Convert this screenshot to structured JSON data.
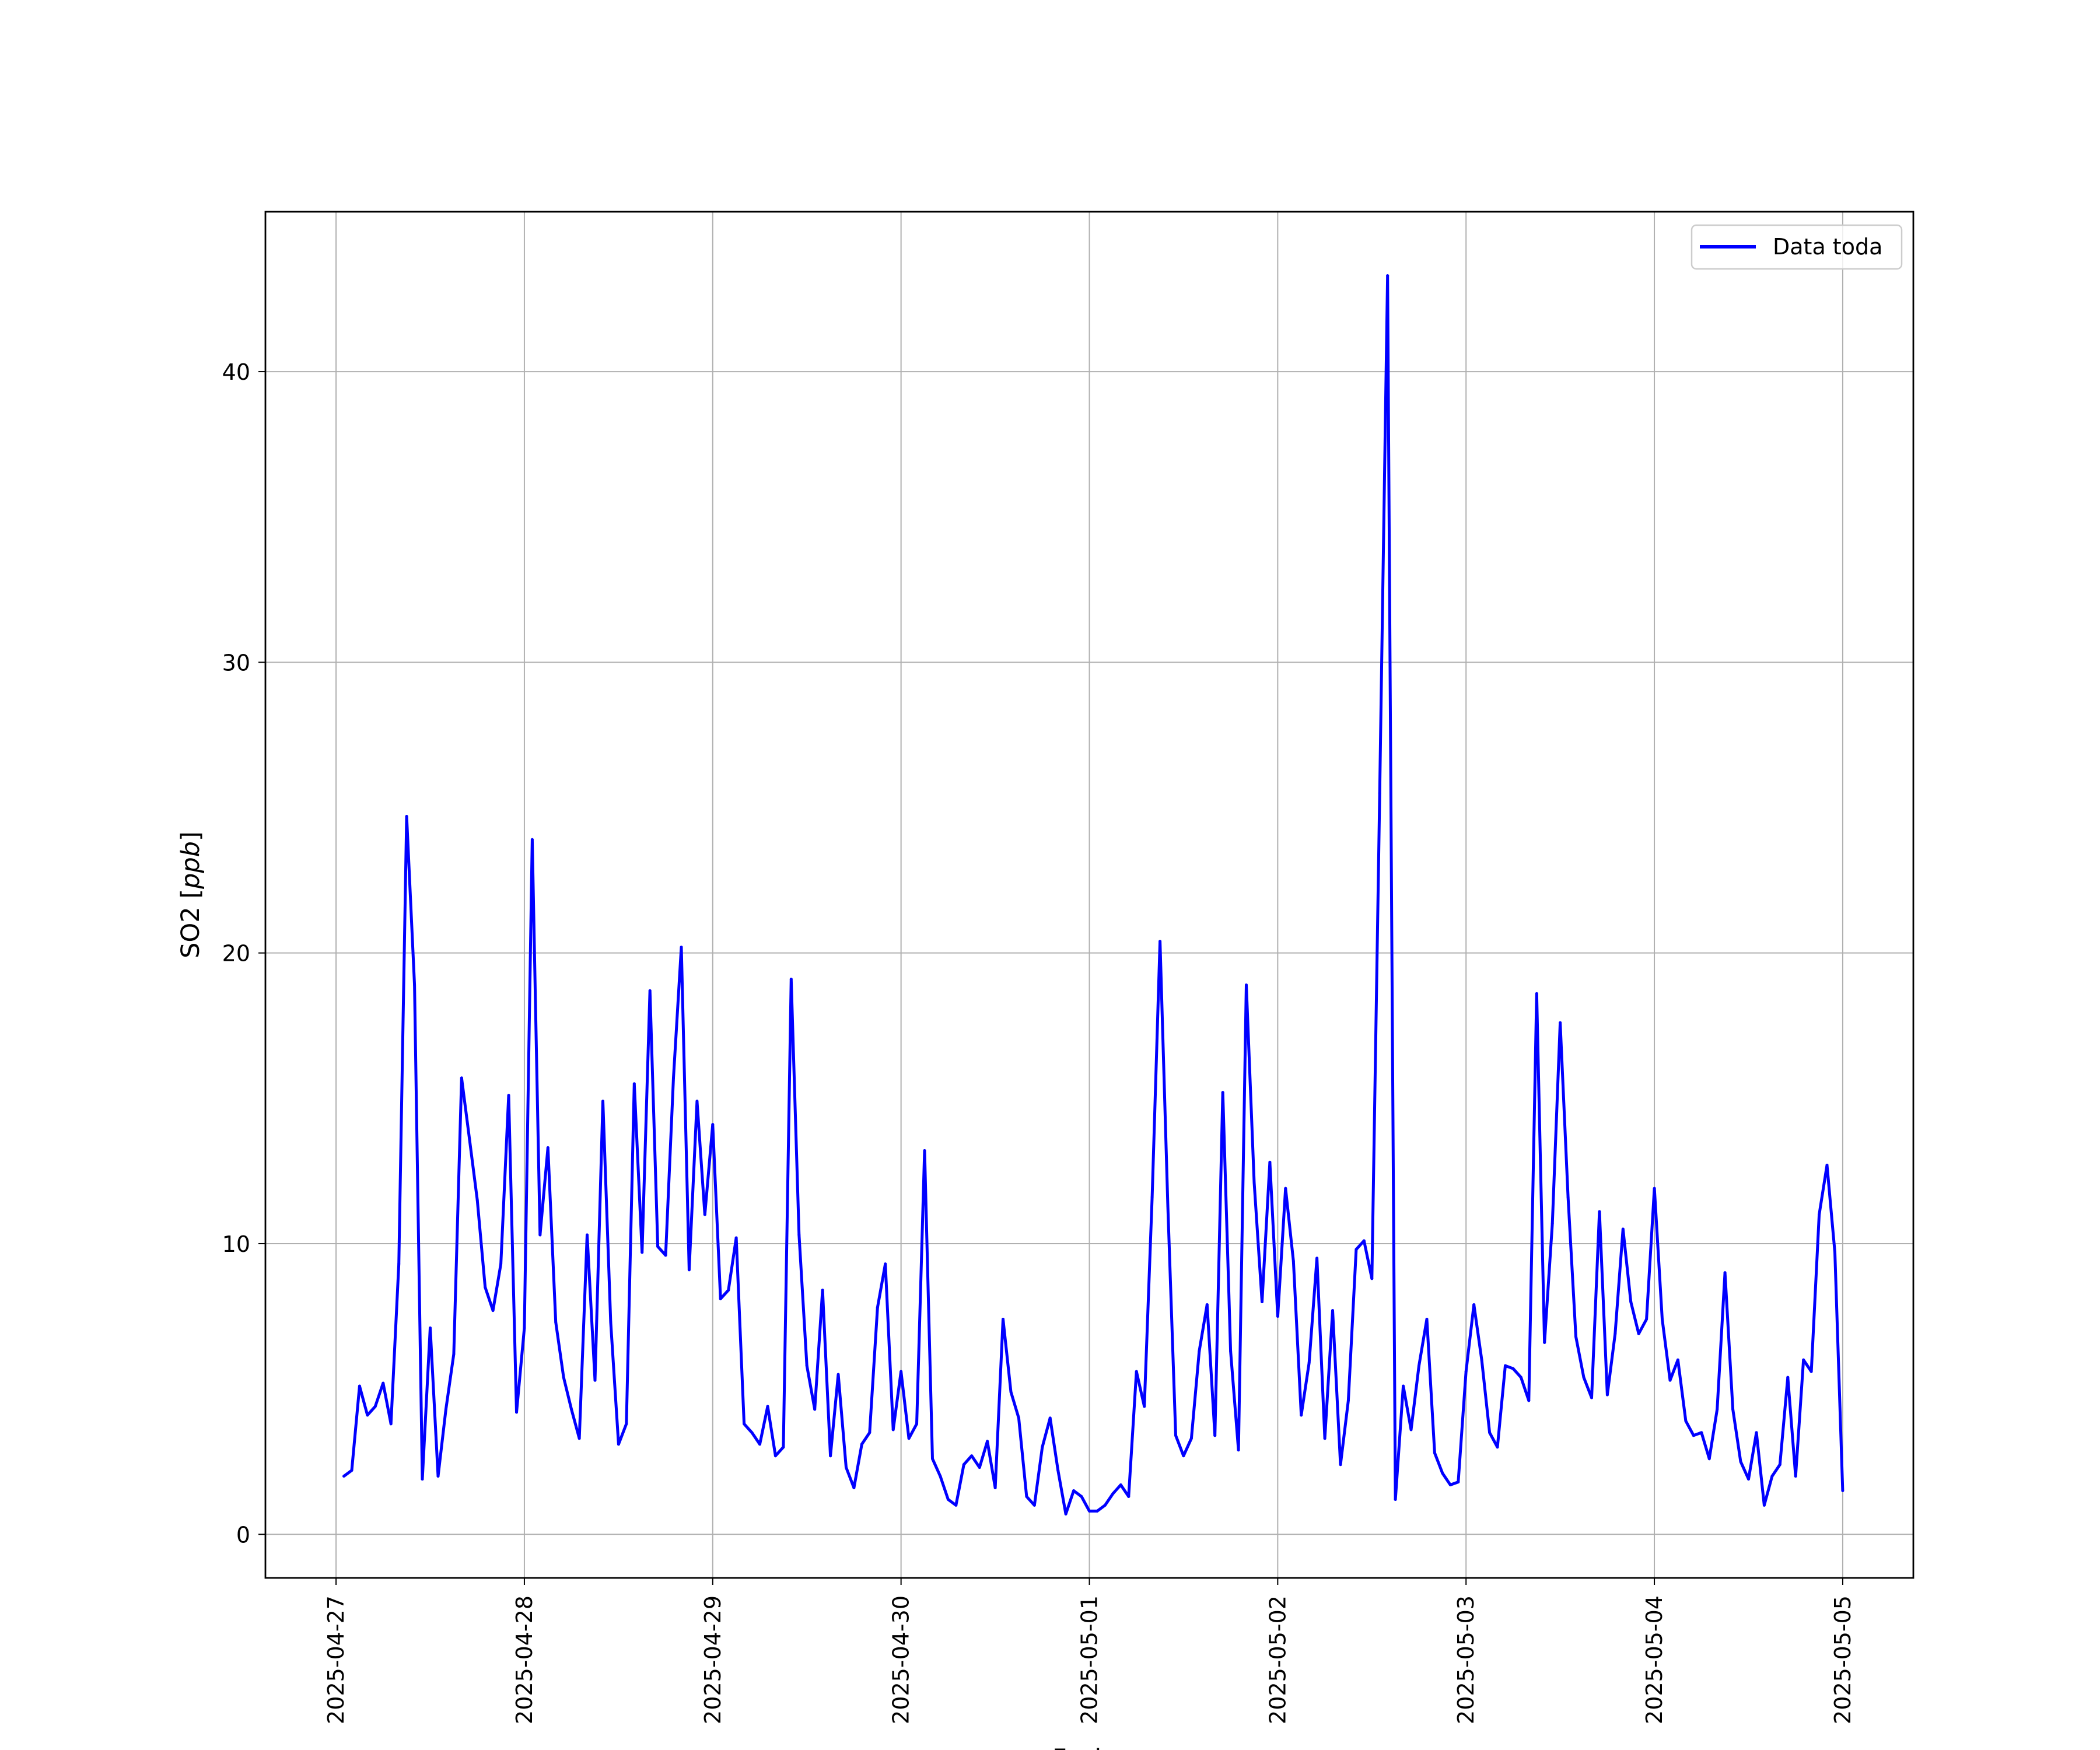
{
  "chart_data": {
    "type": "line",
    "title": "",
    "xlabel": "Fecha",
    "ylabel": {
      "prefix": "SO2 [",
      "unit": "ppb",
      "suffix": "]"
    },
    "xlim": [
      "2025-04-26 15:00",
      "2025-05-05 09:00"
    ],
    "ylim": [
      -1.5,
      45.5
    ],
    "x_ticks": [
      "2025-04-27",
      "2025-04-28",
      "2025-04-29",
      "2025-04-30",
      "2025-05-01",
      "2025-05-02",
      "2025-05-03",
      "2025-05-04",
      "2025-05-05"
    ],
    "y_ticks": [
      0,
      10,
      20,
      30,
      40
    ],
    "grid": true,
    "legend": {
      "position": "top-right",
      "entries": [
        "Data toda"
      ]
    },
    "series": [
      {
        "name": "Data toda",
        "color": "#0000ff",
        "start": "2025-04-27 01:00",
        "interval_hours": 1,
        "values": [
          2.0,
          2.2,
          5.1,
          4.1,
          4.4,
          5.2,
          3.8,
          9.3,
          24.7,
          18.9,
          1.9,
          7.1,
          2.0,
          4.3,
          6.2,
          15.7,
          13.6,
          11.5,
          8.5,
          7.7,
          9.3,
          15.1,
          4.2,
          7.1,
          23.9,
          10.3,
          13.3,
          7.3,
          5.4,
          4.3,
          3.3,
          10.3,
          5.3,
          14.9,
          7.3,
          3.1,
          3.8,
          15.5,
          9.7,
          18.7,
          9.9,
          9.6,
          15.7,
          20.2,
          9.1,
          14.9,
          11.0,
          14.1,
          8.1,
          8.4,
          10.2,
          3.8,
          3.5,
          3.1,
          4.4,
          2.7,
          3.0,
          19.1,
          10.3,
          5.8,
          4.3,
          8.4,
          2.7,
          5.5,
          2.3,
          1.6,
          3.1,
          3.5,
          7.8,
          9.3,
          3.6,
          5.6,
          3.3,
          3.8,
          13.2,
          2.6,
          2.0,
          1.2,
          1.0,
          2.4,
          2.7,
          2.3,
          3.2,
          1.6,
          7.4,
          4.9,
          4.0,
          1.3,
          1.0,
          3.0,
          4.0,
          2.2,
          0.7,
          1.5,
          1.3,
          0.8,
          0.8,
          1.0,
          1.4,
          1.7,
          1.3,
          5.6,
          4.4,
          11.6,
          20.4,
          11.3,
          3.4,
          2.7,
          3.3,
          6.3,
          7.9,
          3.4,
          15.2,
          6.3,
          2.9,
          18.9,
          12.1,
          8.0,
          12.8,
          7.5,
          11.9,
          9.4,
          4.1,
          5.9,
          9.5,
          3.3,
          7.7,
          2.4,
          4.6,
          9.8,
          10.1,
          8.8,
          25.5,
          43.3,
          1.2,
          5.1,
          3.6,
          5.8,
          7.4,
          2.8,
          2.1,
          1.7,
          1.8,
          5.6,
          7.9,
          6.0,
          3.5,
          3.0,
          5.8,
          5.7,
          5.4,
          4.6,
          18.6,
          6.6,
          10.7,
          17.6,
          11.6,
          6.8,
          5.4,
          4.7,
          11.1,
          4.8,
          6.9,
          10.5,
          8.0,
          6.9,
          7.4,
          11.9,
          7.4,
          5.3,
          6.0,
          3.9,
          3.4,
          3.5,
          2.6,
          4.3,
          9.0,
          4.3,
          2.5,
          1.9,
          3.5,
          1.0,
          2.0,
          2.4,
          5.4,
          2.0,
          6.0,
          5.6,
          11.0,
          12.7,
          9.7,
          1.5
        ]
      }
    ]
  }
}
